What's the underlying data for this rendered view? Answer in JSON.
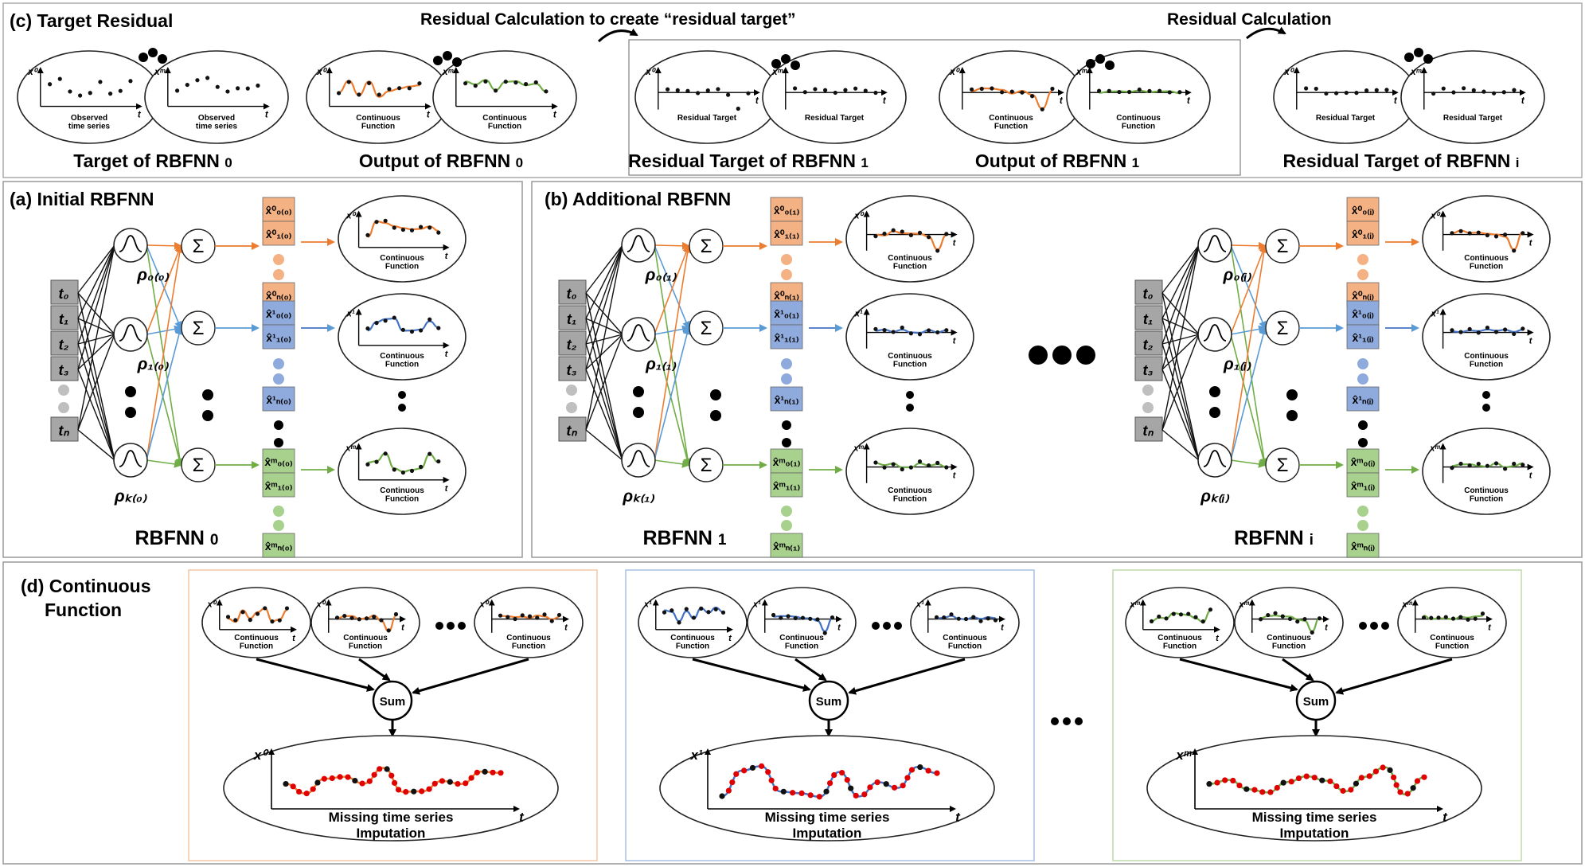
{
  "panel_c": {
    "title": "(c) Target Residual",
    "arrow_label_1": "Residual Calculation to create “residual target”",
    "arrow_label_2": "Residual Calculation",
    "group_labels": [
      "Target of RBFNN",
      "Output of RBFNN",
      "Residual Target of RBFNN",
      "Output of RBFNN",
      "Residual Target of RBFNN"
    ],
    "group_subscripts": [
      "0",
      "0",
      "1",
      "1",
      "i"
    ],
    "ellipse_captions": [
      "Observed\ntime series",
      "Observed\ntime series",
      "Continuous\nFunction",
      "Continuous\nFunction",
      "Residual Target",
      "Residual Target",
      "Continuous\nFunction",
      "Continuous\nFunction",
      "Residual Target",
      "Residual Target"
    ],
    "ellipse_ylabels": [
      "x⁰",
      "xᵐ",
      "x⁰",
      "xᵐ",
      "x⁰",
      "xᵐ",
      "x⁰",
      "xᵐ",
      "x⁰",
      "xᵐ"
    ],
    "t_label": "t"
  },
  "panel_a": {
    "title": "(a) Initial RBFNN",
    "inputs": [
      "t₀",
      "t₁",
      "t₂",
      "t₃",
      "tₙ"
    ],
    "rho_labels": [
      "ρ₀₍₀₎",
      "ρ₁₍₀₎",
      "ρₖ₍₀₎"
    ],
    "sum_symbol": "Σ",
    "outputs_orange": [
      "x̂⁰₀₍₀₎",
      "x̂⁰₁₍₀₎",
      "x̂⁰ₙ₍₀₎"
    ],
    "outputs_blue": [
      "x̂¹₀₍₀₎",
      "x̂¹₁₍₀₎",
      "x̂¹ₙ₍₀₎"
    ],
    "outputs_green": [
      "x̂ᵐ₀₍₀₎",
      "x̂ᵐ₁₍₀₎",
      "x̂ᵐₙ₍₀₎"
    ],
    "network_label": "RBFNN",
    "network_subscript": "0"
  },
  "panel_b": {
    "title": "(b) Additional RBFNN",
    "net1_rho": [
      "ρ₀₍₁₎",
      "ρ₁₍₁₎",
      "ρₖ₍₁₎"
    ],
    "net1_orange": [
      "x̂⁰₀₍₁₎",
      "x̂⁰₁₍₁₎",
      "x̂⁰ₙ₍₁₎"
    ],
    "net1_blue": [
      "x̂¹₀₍₁₎",
      "x̂¹₁₍₁₎",
      "x̂¹ₙ₍₁₎"
    ],
    "net1_green": [
      "x̂ᵐ₀₍₁₎",
      "x̂ᵐ₁₍₁₎",
      "x̂ᵐₙ₍₁₎"
    ],
    "net1_label": "RBFNN",
    "net1_subscript": "1",
    "neti_rho": [
      "ρ₀₍ᵢ₎",
      "ρ₁₍ᵢ₎",
      "ρₖ₍ᵢ₎"
    ],
    "neti_orange": [
      "x̂⁰₀₍ᵢ₎",
      "x̂⁰₁₍ᵢ₎",
      "x̂⁰ₙ₍ᵢ₎"
    ],
    "neti_blue": [
      "x̂¹₀₍ᵢ₎",
      "x̂¹₁₍ᵢ₎",
      "x̂¹ₙ₍ᵢ₎"
    ],
    "neti_green": [
      "x̂ᵐ₀₍ᵢ₎",
      "x̂ᵐ₁₍ᵢ₎",
      "x̂ᵐₙ₍ᵢ₎"
    ],
    "neti_label": "RBFNN",
    "neti_subscript": "i",
    "inputs": [
      "t₀",
      "t₁",
      "t₂",
      "t₃",
      "tₙ"
    ]
  },
  "common": {
    "continuous_function": "Continuous\nFunction",
    "x0": "x⁰",
    "x1": "x¹",
    "xm": "xᵐ",
    "t": "t"
  },
  "panel_d": {
    "title_line1": "(d) Continuous",
    "title_line2": "Function",
    "sum_label": "Sum",
    "imputation_label_line1": "Missing time series",
    "imputation_label_line2": "Imputation",
    "ylabels": [
      "x⁰",
      "x¹",
      "xᵐ"
    ]
  },
  "colors": {
    "orange": "#ec7d30",
    "blue": "#4472c4",
    "green": "#70ad47",
    "orange_box": "#f4b183",
    "blue_box": "#8faadc",
    "green_box": "#a9d18e",
    "gray_box": "#a6a6a6",
    "red_dot": "#e00000"
  }
}
